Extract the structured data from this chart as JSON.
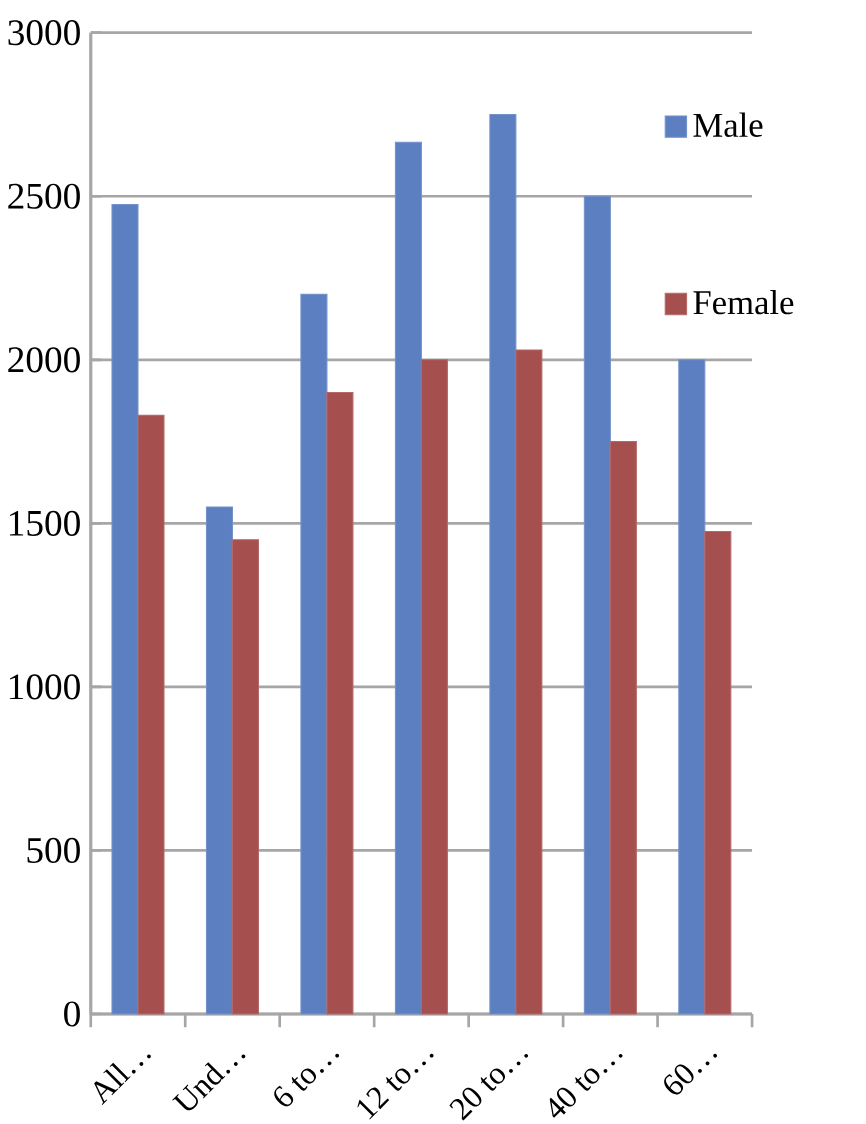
{
  "chart_data": {
    "type": "bar",
    "categories": [
      "All…",
      "Und…",
      "6 to…",
      "12 to…",
      "20 to…",
      "40 to…",
      "60…"
    ],
    "series": [
      {
        "name": "Male",
        "color": "#5b7fc1",
        "values": [
          2475,
          1550,
          2200,
          2665,
          2750,
          2500,
          2000
        ]
      },
      {
        "name": "Female",
        "color": "#a64f4f",
        "values": [
          1830,
          1450,
          1900,
          2000,
          2030,
          1750,
          1475
        ]
      }
    ],
    "ylim": [
      0,
      3000
    ],
    "yticks": [
      0,
      500,
      1000,
      1500,
      2000,
      2500,
      3000
    ],
    "grid": "y",
    "legend": "top right"
  }
}
